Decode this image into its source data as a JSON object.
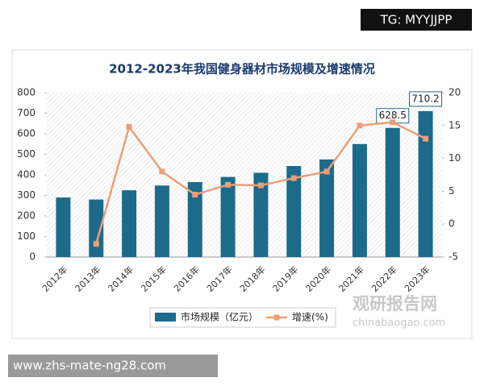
{
  "badge": "TG: MYYJJPP",
  "chart_data": {
    "type": "bar",
    "title": "2012-2023年我国健身器材市场规模及增速情况",
    "categories": [
      "2012年",
      "2013年",
      "2014年",
      "2015年",
      "2016年",
      "2017年",
      "2018年",
      "2019年",
      "2020年",
      "2021年",
      "2022年",
      "2023年"
    ],
    "series": [
      {
        "name": "市场规模（亿元）",
        "type": "bar",
        "color": "#1d6b8b",
        "axis": "y",
        "values": [
          290,
          280,
          325,
          348,
          365,
          390,
          410,
          443,
          475,
          550,
          628.5,
          710.2
        ],
        "value_labels": [
          null,
          null,
          null,
          null,
          null,
          null,
          null,
          null,
          null,
          null,
          "628.5",
          "710.2"
        ]
      },
      {
        "name": "增速(%)",
        "type": "line",
        "color": "#eb9f78",
        "axis": "y2",
        "values": [
          null,
          -3,
          14.8,
          8,
          4.5,
          6,
          5.9,
          7,
          8,
          15,
          15.5,
          13
        ]
      }
    ],
    "ylim": [
      0,
      800
    ],
    "yticks": [
      0,
      100,
      200,
      300,
      400,
      500,
      600,
      700,
      800
    ],
    "y2lim": [
      -5,
      20
    ],
    "y2ticks": [
      -5,
      0,
      5,
      10,
      15,
      20
    ]
  },
  "watermark": {
    "brand": "观研报告网",
    "url": "chinabaogao.com"
  },
  "footer": "www.zhs-mate-ng28.com"
}
